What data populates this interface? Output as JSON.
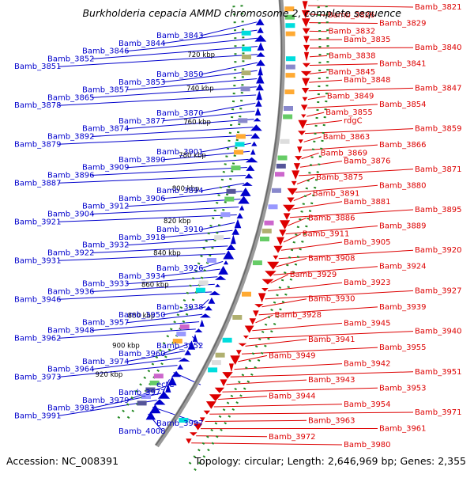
{
  "header": {
    "title": "Burkholderia cepacia AMMD chromosome 2, complete sequence",
    "accession": "Accession: NC_008391",
    "topology": "Topology: circular; Length: 2,646,969 bp; Genes: 2,355"
  },
  "colors": {
    "forward": "#0000cc",
    "reverse": "#dd0000",
    "backbone": "#888888",
    "tick": "#228822"
  },
  "ruler": [
    {
      "label": "720 kbp",
      "kbp": 720
    },
    {
      "label": "740 kbp",
      "kbp": 740
    },
    {
      "label": "760 kbp",
      "kbp": 760
    },
    {
      "label": "780 kbp",
      "kbp": 780
    },
    {
      "label": "800 kbp",
      "kbp": 800
    },
    {
      "label": "820 kbp",
      "kbp": 820
    },
    {
      "label": "840 kbp",
      "kbp": 840
    },
    {
      "label": "860 kbp",
      "kbp": 860
    },
    {
      "label": "880 kbp",
      "kbp": 880
    },
    {
      "label": "900 kbp",
      "kbp": 900
    },
    {
      "label": "920 kbp",
      "kbp": 920
    }
  ],
  "forward_genes": [
    {
      "name": "Bamb_3843"
    },
    {
      "name": "Bamb_3844"
    },
    {
      "name": "Bamb_3846"
    },
    {
      "name": "Bamb_3852"
    },
    {
      "name": "Bamb_3851"
    },
    {
      "name": "Bamb_3850"
    },
    {
      "name": "Bamb_3853"
    },
    {
      "name": "Bamb_3857"
    },
    {
      "name": "Bamb_3865"
    },
    {
      "name": "Bamb_3878"
    },
    {
      "name": "Bamb_3870"
    },
    {
      "name": "Bamb_3877"
    },
    {
      "name": "Bamb_3874"
    },
    {
      "name": "Bamb_3892"
    },
    {
      "name": "Bamb_3879"
    },
    {
      "name": "Bamb_3901"
    },
    {
      "name": "Bamb_3890"
    },
    {
      "name": "Bamb_3909"
    },
    {
      "name": "Bamb_3896"
    },
    {
      "name": "Bamb_3887"
    },
    {
      "name": "Bamb_3894"
    },
    {
      "name": "Bamb_3906"
    },
    {
      "name": "Bamb_3912"
    },
    {
      "name": "Bamb_3904"
    },
    {
      "name": "Bamb_3921"
    },
    {
      "name": "Bamb_3910"
    },
    {
      "name": "Bamb_3918"
    },
    {
      "name": "Bamb_3932"
    },
    {
      "name": "Bamb_3922"
    },
    {
      "name": "Bamb_3931"
    },
    {
      "name": "Bamb_3926"
    },
    {
      "name": "Bamb_3934"
    },
    {
      "name": "Bamb_3933"
    },
    {
      "name": "Bamb_3936"
    },
    {
      "name": "Bamb_3946"
    },
    {
      "name": "Bamb_3938"
    },
    {
      "name": "Bamb_3950"
    },
    {
      "name": "Bamb_3957"
    },
    {
      "name": "Bamb_3948"
    },
    {
      "name": "Bamb_3962"
    },
    {
      "name": "Bamb_3952"
    },
    {
      "name": "Bamb_3960"
    },
    {
      "name": "Bamb_3974"
    },
    {
      "name": "Bamb_3964"
    },
    {
      "name": "Bamb_3973"
    },
    {
      "name": "ectC"
    },
    {
      "name": "Bamb_3977"
    },
    {
      "name": "Bamb_3979"
    },
    {
      "name": "Bamb_3983"
    },
    {
      "name": "Bamb_3991"
    },
    {
      "name": "Bamb_3997"
    },
    {
      "name": "Bamb_4008"
    }
  ],
  "reverse_genes": [
    {
      "name": "Bamb_3821"
    },
    {
      "name": "Bamb_3826"
    },
    {
      "name": "Bamb_3829"
    },
    {
      "name": "Bamb_3832"
    },
    {
      "name": "Bamb_3835"
    },
    {
      "name": "Bamb_3840"
    },
    {
      "name": "Bamb_3838"
    },
    {
      "name": "Bamb_3841"
    },
    {
      "name": "Bamb_3845"
    },
    {
      "name": "Bamb_3848"
    },
    {
      "name": "Bamb_3847"
    },
    {
      "name": "Bamb_3849"
    },
    {
      "name": "Bamb_3854"
    },
    {
      "name": "Bamb_3855"
    },
    {
      "name": "rdgC"
    },
    {
      "name": "Bamb_3859"
    },
    {
      "name": "Bamb_3863"
    },
    {
      "name": "Bamb_3866"
    },
    {
      "name": "Bamb_3869"
    },
    {
      "name": "Bamb_3876"
    },
    {
      "name": "Bamb_3871"
    },
    {
      "name": "Bamb_3875"
    },
    {
      "name": "Bamb_3880"
    },
    {
      "name": "Bamb_3891"
    },
    {
      "name": "Bamb_3881"
    },
    {
      "name": "Bamb_3895"
    },
    {
      "name": "Bamb_3886"
    },
    {
      "name": "Bamb_3889"
    },
    {
      "name": "Bamb_3911"
    },
    {
      "name": "Bamb_3905"
    },
    {
      "name": "Bamb_3920"
    },
    {
      "name": "Bamb_3908"
    },
    {
      "name": "Bamb_3924"
    },
    {
      "name": "Bamb_3929"
    },
    {
      "name": "Bamb_3923"
    },
    {
      "name": "Bamb_3927"
    },
    {
      "name": "Bamb_3930"
    },
    {
      "name": "Bamb_3939"
    },
    {
      "name": "Bamb_3928"
    },
    {
      "name": "Bamb_3945"
    },
    {
      "name": "Bamb_3940"
    },
    {
      "name": "Bamb_3941"
    },
    {
      "name": "Bamb_3955"
    },
    {
      "name": "Bamb_3949"
    },
    {
      "name": "Bamb_3942"
    },
    {
      "name": "Bamb_3951"
    },
    {
      "name": "Bamb_3943"
    },
    {
      "name": "Bamb_3953"
    },
    {
      "name": "Bamb_3944"
    },
    {
      "name": "Bamb_3954"
    },
    {
      "name": "Bamb_3971"
    },
    {
      "name": "Bamb_3963"
    },
    {
      "name": "Bamb_3961"
    },
    {
      "name": "Bamb_3972"
    },
    {
      "name": "Bamb_3980"
    }
  ]
}
